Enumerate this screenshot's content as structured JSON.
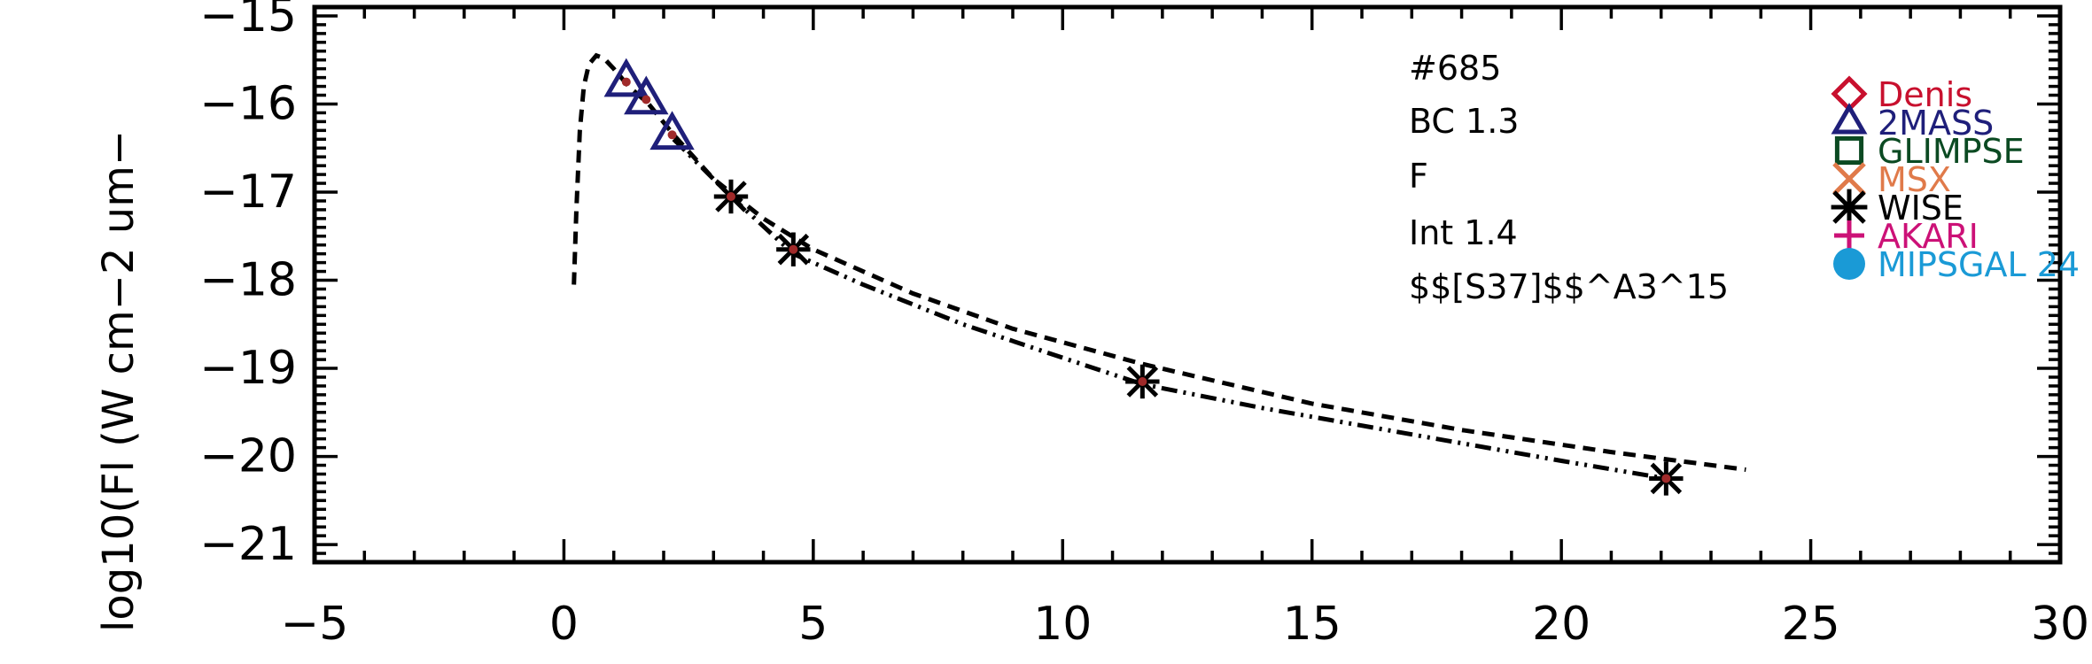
{
  "chart_data": {
    "type": "scatter",
    "ylabel": "log10(Fl (W cm−2 um−",
    "xlim": [
      -5,
      30
    ],
    "ylim": [
      -21.2,
      -14.9
    ],
    "x_ticks": [
      -5,
      0,
      5,
      10,
      15,
      20,
      25,
      30
    ],
    "x_tick_labels": [
      "−5",
      "0",
      "5",
      "10",
      "15",
      "20",
      "25",
      "30"
    ],
    "y_ticks": [
      -21,
      -20,
      -19,
      -18,
      -17,
      -16,
      -15
    ],
    "y_tick_labels": [
      "−21",
      "−20",
      "−19",
      "−18",
      "−17",
      "−16",
      "−15"
    ],
    "grid": false,
    "annotations": [
      "#685",
      "BC  1.3",
      "F",
      "Int  1.4",
      "$$[S37]$$^A3^15"
    ],
    "legend": {
      "placement": "top-right",
      "entries": [
        {
          "label": "Denis",
          "marker": "diamond",
          "color": "#c8102e"
        },
        {
          "label": "2MASS",
          "marker": "triangle",
          "color": "#1f1f7a"
        },
        {
          "label": "GLIMPSE",
          "marker": "square",
          "color": "#0b4a22"
        },
        {
          "label": "MSX",
          "marker": "x",
          "color": "#e07a4a"
        },
        {
          "label": "WISE",
          "marker": "asterisk",
          "color": "#000000"
        },
        {
          "label": "AKARI",
          "marker": "plus",
          "color": "#cc1177"
        },
        {
          "label": "MIPSGAL 24",
          "marker": "circle",
          "color": "#1a9ad6"
        }
      ]
    },
    "series": [
      {
        "marker": "triangle",
        "color": "#1f1f7a",
        "points": [
          [
            1.25,
            -15.75
          ],
          [
            1.65,
            -15.95
          ],
          [
            2.17,
            -16.35
          ]
        ]
      },
      {
        "marker": "asterisk",
        "color": "#000000",
        "points": [
          [
            3.35,
            -17.05
          ],
          [
            4.6,
            -17.65
          ],
          [
            11.6,
            -19.15
          ],
          [
            22.1,
            -20.25
          ]
        ]
      },
      {
        "marker": "dot",
        "color": "#a02a2a",
        "points": [
          [
            1.25,
            -15.75
          ],
          [
            1.65,
            -15.95
          ],
          [
            2.17,
            -16.35
          ],
          [
            3.35,
            -17.05
          ],
          [
            4.6,
            -17.65
          ],
          [
            11.6,
            -19.15
          ],
          [
            22.1,
            -20.25
          ]
        ]
      }
    ],
    "curves": [
      {
        "style": "dashed",
        "color": "#000000",
        "points": [
          [
            0.2,
            -18.05
          ],
          [
            0.25,
            -17.2
          ],
          [
            0.32,
            -16.3
          ],
          [
            0.4,
            -15.8
          ],
          [
            0.5,
            -15.55
          ],
          [
            0.65,
            -15.45
          ],
          [
            0.8,
            -15.48
          ],
          [
            1.0,
            -15.6
          ],
          [
            1.3,
            -15.8
          ],
          [
            1.7,
            -16.0
          ],
          [
            2.2,
            -16.35
          ],
          [
            3.0,
            -16.85
          ],
          [
            4.0,
            -17.3
          ],
          [
            5.0,
            -17.65
          ],
          [
            7.0,
            -18.15
          ],
          [
            9.0,
            -18.55
          ],
          [
            11.6,
            -18.95
          ],
          [
            15.0,
            -19.4
          ],
          [
            18.0,
            -19.7
          ],
          [
            21.0,
            -19.95
          ],
          [
            23.7,
            -20.15
          ]
        ]
      },
      {
        "style": "dashdot",
        "color": "#000000",
        "points": [
          [
            2.2,
            -16.4
          ],
          [
            3.35,
            -17.05
          ],
          [
            4.6,
            -17.7
          ],
          [
            6.0,
            -18.05
          ],
          [
            8.0,
            -18.5
          ],
          [
            10.0,
            -18.88
          ],
          [
            11.6,
            -19.18
          ],
          [
            14.0,
            -19.45
          ],
          [
            17.0,
            -19.75
          ],
          [
            20.0,
            -20.05
          ],
          [
            22.1,
            -20.25
          ]
        ]
      }
    ]
  }
}
